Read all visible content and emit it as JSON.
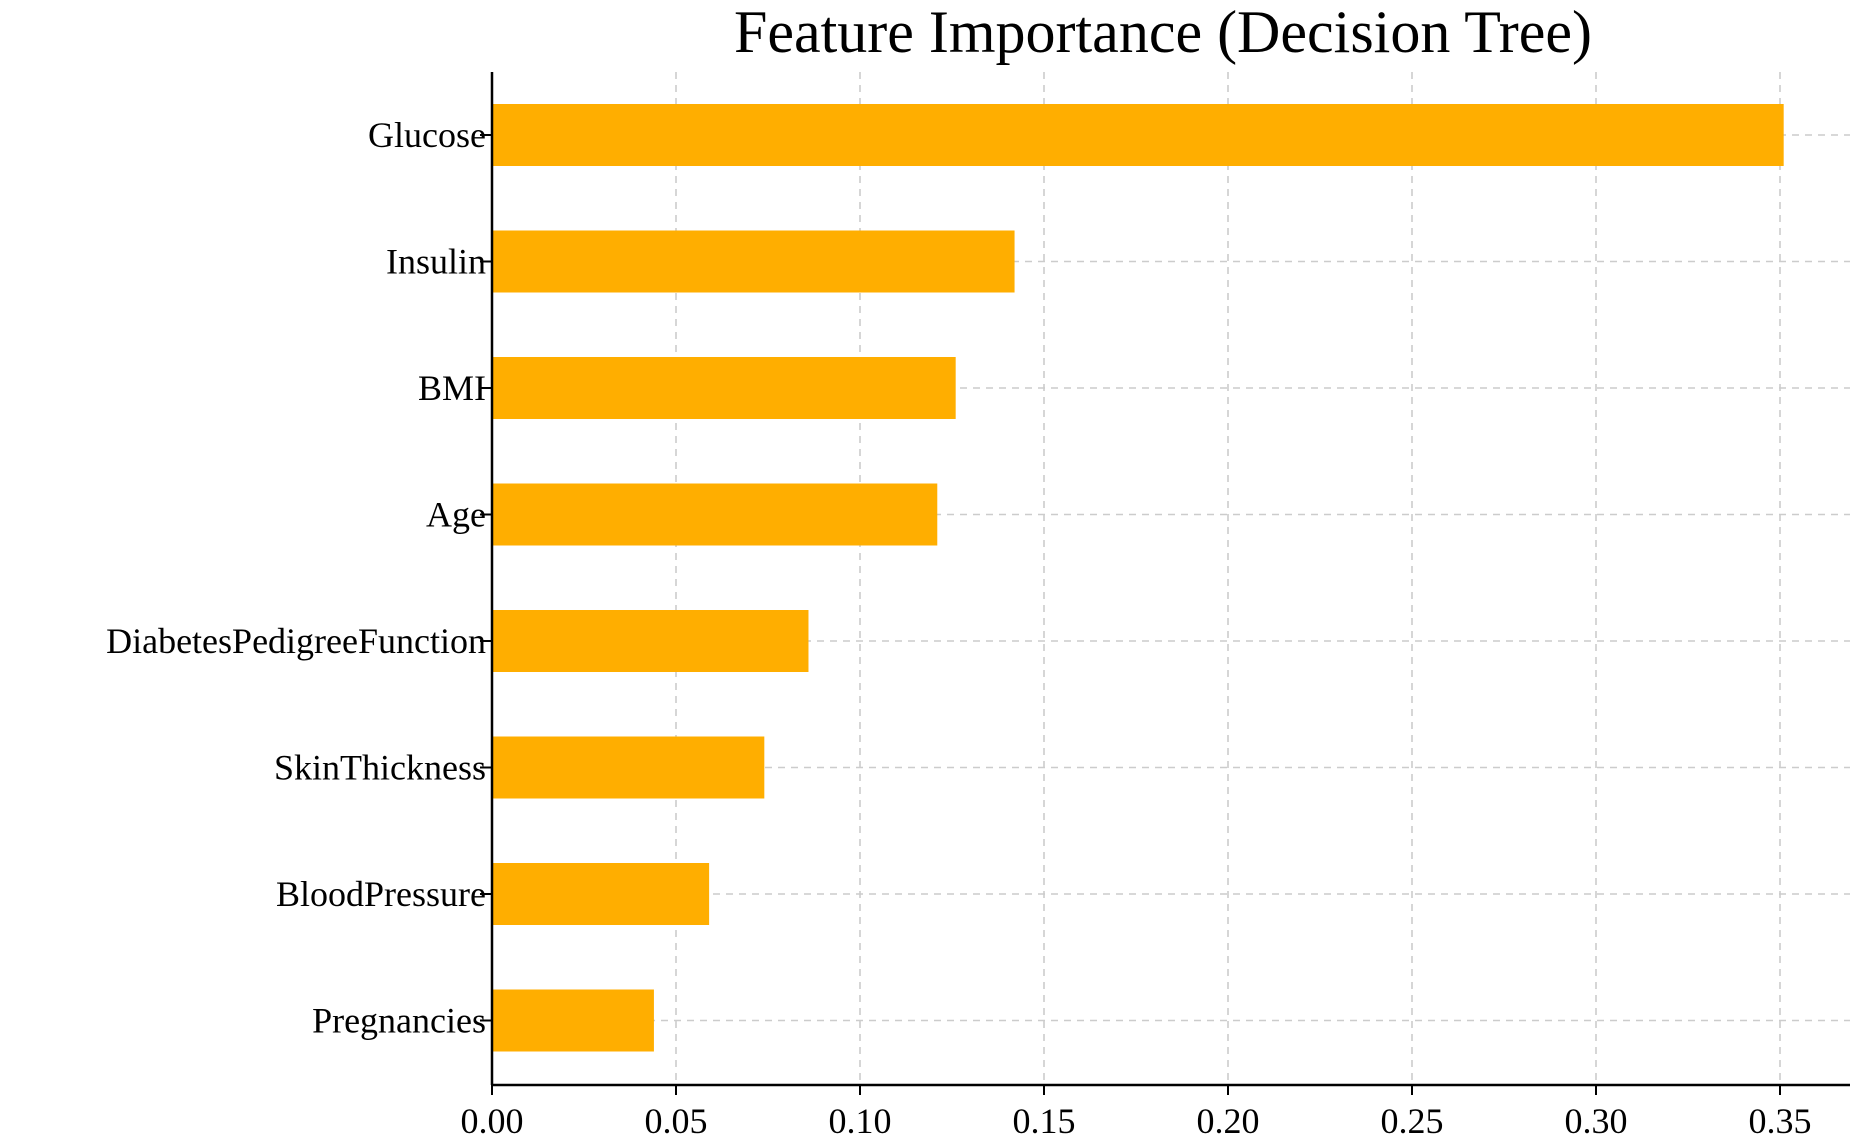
{
  "chart_data": {
    "type": "bar",
    "orientation": "horizontal",
    "title": "Feature Importance (Decision Tree)",
    "xlabel": "",
    "ylabel": "",
    "categories": [
      "Glucose",
      "Insulin",
      "BMI",
      "Age",
      "DiabetesPedigreeFunction",
      "SkinThickness",
      "BloodPressure",
      "Pregnancies"
    ],
    "values": [
      0.351,
      0.142,
      0.126,
      0.121,
      0.086,
      0.074,
      0.059,
      0.044
    ],
    "xlim": [
      0.0,
      0.37
    ],
    "xticks": [
      0.0,
      0.05,
      0.1,
      0.15,
      0.2,
      0.25,
      0.3,
      0.35
    ],
    "xtick_labels": [
      "0.00",
      "0.05",
      "0.10",
      "0.15",
      "0.20",
      "0.25",
      "0.30",
      "0.35"
    ],
    "bar_color": "#ffae00",
    "grid": true,
    "legend": "none"
  }
}
